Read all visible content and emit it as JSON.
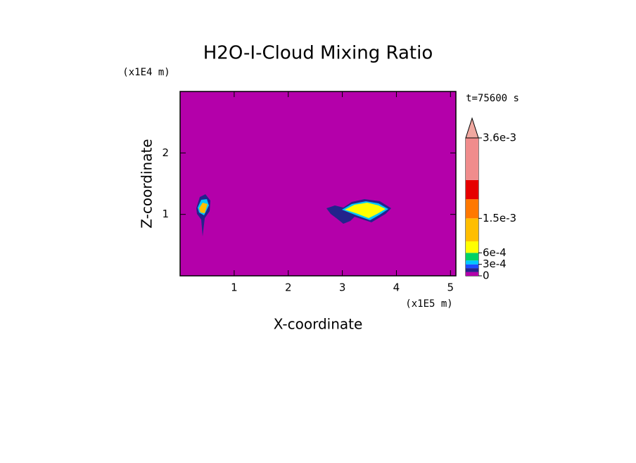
{
  "chart_data": {
    "type": "contour",
    "title": "H2O-I-Cloud Mixing Ratio",
    "x_label": "X-coordinate",
    "y_label": "Z-coordinate",
    "x_unit": "(x1E5 m)",
    "y_unit": "(x1E4 m)",
    "annotation": "t=75600 s",
    "xlim": [
      0,
      5.1
    ],
    "ylim": [
      0,
      3
    ],
    "xticks": [
      1,
      2,
      3,
      4,
      5
    ],
    "yticks": [
      1,
      2
    ],
    "colorbar": {
      "lim": [
        0,
        0.0036
      ],
      "levels": [
        0,
        0.0001,
        0.0002,
        0.0003,
        0.0004,
        0.0006,
        0.0009,
        0.0015,
        0.002,
        0.0025,
        0.0036
      ],
      "colors": [
        "#b400aa",
        "#23238c",
        "#1e4bff",
        "#00c8ff",
        "#00d264",
        "#ffff00",
        "#ffbe00",
        "#ff7800",
        "#e60000",
        "#f08c8c"
      ],
      "extend_color": "#f0a8a0",
      "ticks": [
        0,
        {
          "value": 0.0003,
          "label": "3e-4"
        },
        {
          "value": 0.0006,
          "label": "6e-4"
        },
        {
          "value": 0.0015,
          "label": "1.5e-3"
        },
        {
          "value": 0.0036,
          "label": "3.6e-3"
        }
      ]
    }
  }
}
